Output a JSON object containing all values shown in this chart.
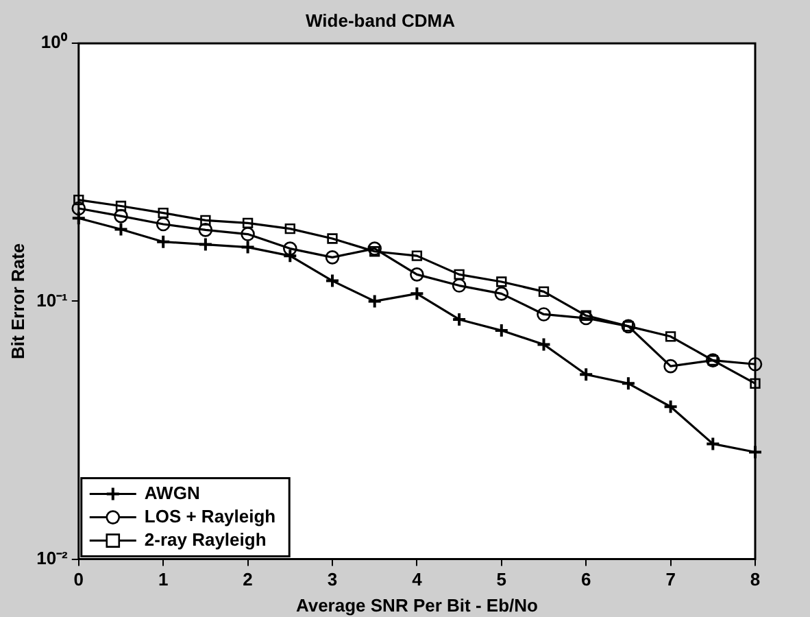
{
  "chart_data": {
    "type": "line",
    "title": "Wide-band CDMA",
    "xlabel": "Average SNR Per Bit - Eb/No",
    "ylabel": "Bit Error Rate",
    "x": [
      0,
      0.5,
      1,
      1.5,
      2,
      2.5,
      3,
      3.5,
      4,
      4.5,
      5,
      5.5,
      6,
      6.5,
      7,
      7.5,
      8
    ],
    "series": [
      {
        "name": "AWGN",
        "color": "#000000",
        "marker": "cross",
        "values": [
          0.21,
          0.19,
          0.17,
          0.166,
          0.162,
          0.15,
          0.12,
          0.1,
          0.107,
          0.085,
          0.077,
          0.068,
          0.052,
          0.048,
          0.039,
          0.028,
          0.026
        ]
      },
      {
        "name": "LOS + Rayleigh",
        "color": "#000000",
        "marker": "circle",
        "values": [
          0.229,
          0.214,
          0.199,
          0.189,
          0.182,
          0.16,
          0.148,
          0.16,
          0.127,
          0.115,
          0.107,
          0.089,
          0.086,
          0.08,
          0.056,
          0.059,
          0.057
        ]
      },
      {
        "name": "2-ray Rayleigh",
        "color": "#000000",
        "marker": "square",
        "values": [
          0.247,
          0.234,
          0.22,
          0.206,
          0.201,
          0.191,
          0.175,
          0.156,
          0.15,
          0.127,
          0.119,
          0.109,
          0.088,
          0.08,
          0.073,
          0.059,
          0.048
        ]
      }
    ],
    "log": "y",
    "xlim": [
      0,
      8
    ],
    "xticks": [
      0,
      1,
      2,
      3,
      4,
      5,
      6,
      7,
      8
    ],
    "ylim": [
      0.01,
      1
    ],
    "yticks": [
      {
        "value": 0.01,
        "label": "10⁻²"
      },
      {
        "value": 0.1,
        "label": "10⁻¹"
      },
      {
        "value": 1,
        "label": "10⁰"
      }
    ],
    "grid": false,
    "legend": "bottom left"
  }
}
